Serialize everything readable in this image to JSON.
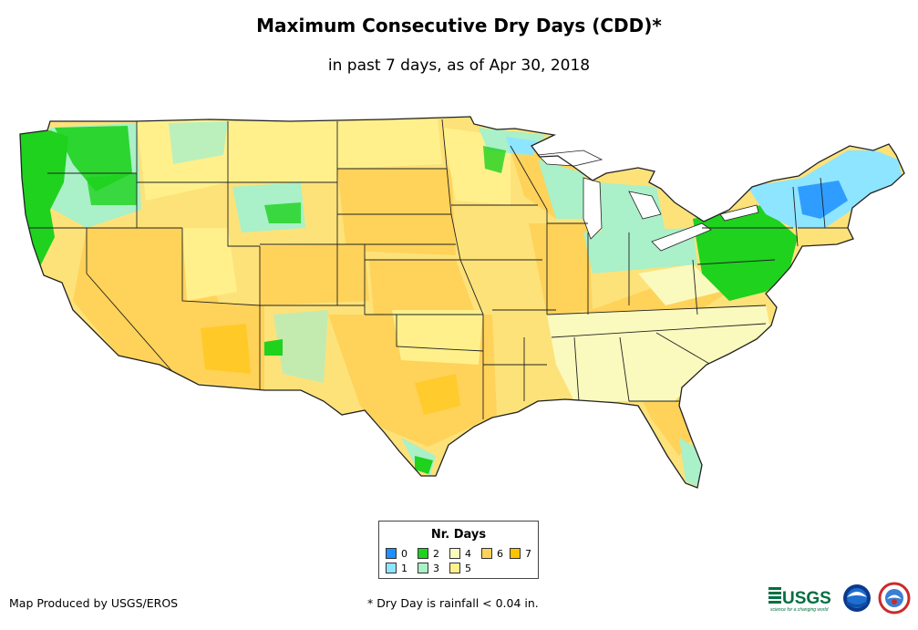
{
  "title": "Maximum Consecutive Dry Days (CDD)*",
  "subtitle": "in past 7 days, as of Apr 30, 2018",
  "legend": {
    "title": "Nr. Days",
    "items": [
      {
        "label": "0",
        "color": "#1e90ff"
      },
      {
        "label": "1",
        "color": "#8ee5ff"
      },
      {
        "label": "2",
        "color": "#1ed21e"
      },
      {
        "label": "3",
        "color": "#aaf0c8"
      },
      {
        "label": "4",
        "color": "#fafabe"
      },
      {
        "label": "5",
        "color": "#fff08c"
      },
      {
        "label": "6",
        "color": "#ffd25a"
      },
      {
        "label": "7",
        "color": "#ffc300"
      }
    ]
  },
  "footer": {
    "producer": "Map Produced by USGS/EROS",
    "note": "* Dry Day is rainfall < 0.04 in."
  },
  "logos": {
    "usgs_text": "USGS",
    "usgs_tagline": "science for a changing world"
  },
  "colors": {
    "border": "#222222",
    "water": "#ffffff"
  }
}
